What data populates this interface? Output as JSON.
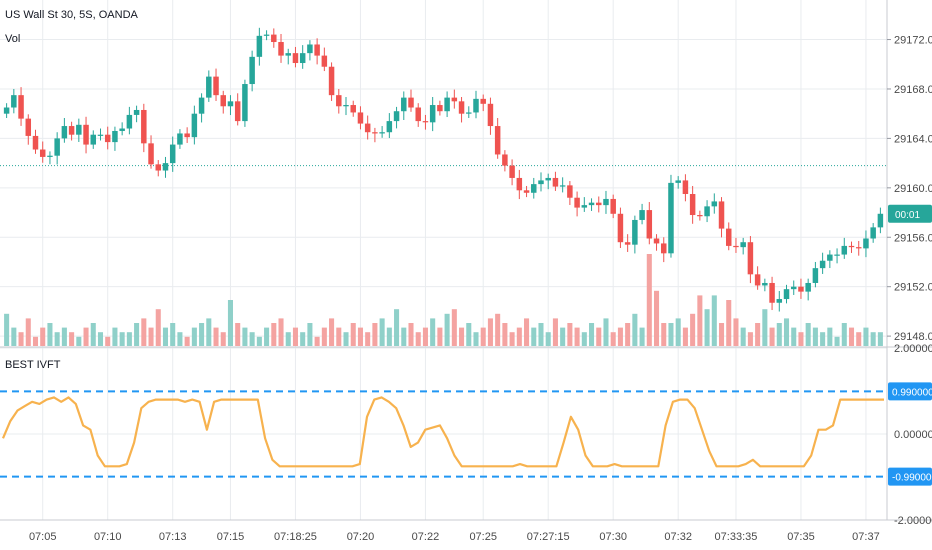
{
  "header": {
    "symbol_title": "US Wall St 30, 5S, OANDA",
    "volume_label": "Vol",
    "indicator_title": "BEST IVFT"
  },
  "colors": {
    "up": "#26a69a",
    "down": "#ef5350",
    "vol_up": "#8fd0c9",
    "vol_down": "#f4a3a1",
    "indicator_line": "#f7b24e",
    "level_line": "#2196f3",
    "price_line": "#26a69a",
    "grid": "#e9ecef",
    "axis_text": "#4a4a4a"
  },
  "chart_data": [
    {
      "type": "candlestick",
      "title": "US Wall St 30, 5S, OANDA",
      "y_axis_ticks": [
        "29172.0",
        "29168.0",
        "29164.0",
        "29160.0",
        "29156.0",
        "29152.0",
        "29148.0"
      ],
      "ylim": [
        29147.2,
        29175.2
      ],
      "x_tick_labels": [
        "07:05",
        "07:10",
        "07:13",
        "07:15",
        "07:18:25",
        "07:20",
        "07:22",
        "07:25",
        "07:27:15",
        "07:30",
        "07:32",
        "07:33:35",
        "07:35",
        "07:37"
      ],
      "current_price_badge": "00:01",
      "current_price": 29157.9,
      "reference_line": 29161.8,
      "closes": [
        29166.5,
        29167.5,
        29165.6,
        29164.2,
        29163.1,
        29162.5,
        29162.6,
        29164.0,
        29165.0,
        29164.3,
        29165.1,
        29163.5,
        29164.3,
        29164.3,
        29163.7,
        29164.6,
        29164.8,
        29165.9,
        29166.3,
        29163.6,
        29161.9,
        29161.4,
        29162.0,
        29163.5,
        29164.4,
        29164.1,
        29166.0,
        29167.3,
        29169.0,
        29167.5,
        29166.6,
        29167.0,
        29165.4,
        29168.4,
        29170.6,
        29172.3,
        29172.4,
        29171.8,
        29170.7,
        29170.9,
        29170.1,
        29170.9,
        29171.6,
        29170.7,
        29169.8,
        29167.5,
        29166.6,
        29166.7,
        29166.1,
        29165.2,
        29164.5,
        29164.4,
        29164.5,
        29165.4,
        29166.2,
        29167.3,
        29166.5,
        29165.4,
        29165.3,
        29166.7,
        29166.2,
        29167.3,
        29167.0,
        29166.0,
        29166.1,
        29167.2,
        29166.8,
        29165.0,
        29162.7,
        29161.8,
        29160.8,
        29159.8,
        29159.6,
        29160.3,
        29160.6,
        29160.8,
        29160.1,
        29160.2,
        29159.2,
        29158.4,
        29158.6,
        29158.8,
        29158.6,
        29159.1,
        29157.9,
        29155.6,
        29155.4,
        29157.4,
        29158.2,
        29155.9,
        29155.5,
        29154.7,
        29160.4,
        29160.6,
        29159.5,
        29157.8,
        29157.7,
        29158.5,
        29158.9,
        29156.7,
        29155.3,
        29155.2,
        29155.6,
        29153.0,
        29152.1,
        29152.3,
        29150.7,
        29151.0,
        29151.8,
        29152.0,
        29151.6,
        29152.3,
        29153.5,
        29154.1,
        29154.6,
        29154.6,
        29155.3,
        29155.2,
        29155.1,
        29155.9,
        29156.8,
        29157.9
      ],
      "volume_relative": [
        0.7,
        0.4,
        0.3,
        0.6,
        0.2,
        0.4,
        0.5,
        0.3,
        0.4,
        0.3,
        0.2,
        0.4,
        0.5,
        0.3,
        0.2,
        0.4,
        0.3,
        0.3,
        0.5,
        0.6,
        0.4,
        0.8,
        0.4,
        0.5,
        0.3,
        0.2,
        0.4,
        0.5,
        0.6,
        0.4,
        0.3,
        1.0,
        0.5,
        0.4,
        0.3,
        0.2,
        0.4,
        0.5,
        0.6,
        0.3,
        0.4,
        0.3,
        0.5,
        0.2,
        0.4,
        0.6,
        0.4,
        0.3,
        0.5,
        0.4,
        0.3,
        0.5,
        0.6,
        0.4,
        0.8,
        0.4,
        0.5,
        0.3,
        0.4,
        0.6,
        0.4,
        0.7,
        0.8,
        0.4,
        0.5,
        0.3,
        0.4,
        0.6,
        0.7,
        0.5,
        0.3,
        0.4,
        0.6,
        0.4,
        0.5,
        0.3,
        0.6,
        0.4,
        0.5,
        0.4,
        0.3,
        0.5,
        0.4,
        0.6,
        0.3,
        0.4,
        0.5,
        0.7,
        0.4,
        2.0,
        1.2,
        0.5,
        0.5,
        0.6,
        0.4,
        0.7,
        1.1,
        0.8,
        1.1,
        0.5,
        1.0,
        0.6,
        0.4,
        0.3,
        0.5,
        0.8,
        0.4,
        0.5,
        0.6,
        0.4,
        0.3,
        0.5,
        0.4,
        0.3,
        0.4,
        0.2,
        0.5,
        0.4,
        0.3,
        0.4,
        0.3,
        0.3
      ]
    },
    {
      "type": "line",
      "title": "BEST IVFT",
      "y_axis_ticks": [
        "2.000000",
        "0.000000",
        "-2.000000"
      ],
      "ylim": [
        -2.0,
        2.0
      ],
      "levels": [
        {
          "label": "0.990000",
          "value": 0.99
        },
        {
          "label": "-0.990000",
          "value": -0.99
        }
      ],
      "values": [
        -0.1,
        0.3,
        0.55,
        0.65,
        0.75,
        0.7,
        0.8,
        0.85,
        0.75,
        0.85,
        0.7,
        0.2,
        0.1,
        -0.5,
        -0.75,
        -0.75,
        -0.75,
        -0.7,
        -0.2,
        0.6,
        0.75,
        0.8,
        0.8,
        0.8,
        0.8,
        0.75,
        0.8,
        0.75,
        0.1,
        0.75,
        0.8,
        0.8,
        0.8,
        0.8,
        0.8,
        0.8,
        -0.1,
        -0.6,
        -0.75,
        -0.75,
        -0.75,
        -0.75,
        -0.75,
        -0.75,
        -0.75,
        -0.75,
        -0.75,
        -0.75,
        -0.75,
        -0.7,
        0.4,
        0.8,
        0.85,
        0.75,
        0.6,
        0.2,
        -0.3,
        -0.2,
        0.1,
        0.15,
        0.2,
        -0.1,
        -0.5,
        -0.75,
        -0.75,
        -0.75,
        -0.75,
        -0.75,
        -0.75,
        -0.75,
        -0.75,
        -0.7,
        -0.75,
        -0.75,
        -0.75,
        -0.75,
        -0.75,
        -0.2,
        0.4,
        0.1,
        -0.5,
        -0.75,
        -0.75,
        -0.75,
        -0.7,
        -0.75,
        -0.75,
        -0.75,
        -0.75,
        -0.75,
        -0.75,
        0.2,
        0.75,
        0.8,
        0.8,
        0.6,
        0.1,
        -0.4,
        -0.75,
        -0.75,
        -0.75,
        -0.75,
        -0.7,
        -0.6,
        -0.75,
        -0.75,
        -0.75,
        -0.75,
        -0.75,
        -0.75,
        -0.75,
        -0.5,
        0.1,
        0.1,
        0.2,
        0.8,
        0.8,
        0.8,
        0.8,
        0.8,
        0.8,
        0.8
      ]
    }
  ]
}
